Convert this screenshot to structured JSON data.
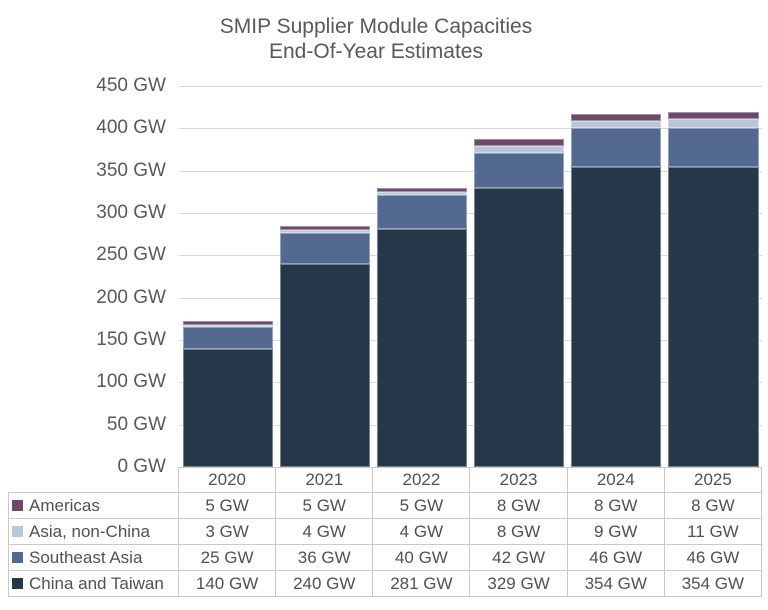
{
  "title": {
    "line1": "SMIP Supplier Module Capacities",
    "line2": "End-Of-Year Estimates"
  },
  "chart_data": {
    "type": "bar",
    "stacked": true,
    "title": "SMIP Supplier Module Capacities End-Of-Year Estimates",
    "categories": [
      "2020",
      "2021",
      "2022",
      "2023",
      "2024",
      "2025"
    ],
    "series": [
      {
        "name": "Americas",
        "color": "#6d4a6b",
        "values": [
          5,
          5,
          5,
          8,
          8,
          8
        ]
      },
      {
        "name": "Asia, non-China",
        "color": "#b9c6da",
        "values": [
          3,
          4,
          4,
          8,
          9,
          11
        ]
      },
      {
        "name": "Southeast Asia",
        "color": "#536990",
        "values": [
          25,
          36,
          40,
          42,
          46,
          46
        ]
      },
      {
        "name": "China and Taiwan",
        "color": "#253749",
        "values": [
          140,
          240,
          281,
          329,
          354,
          354
        ]
      }
    ],
    "unit": "GW",
    "ylim": [
      0,
      450
    ],
    "ytick_step": 50,
    "ytick_labels": [
      "450 GW",
      "400 GW",
      "350 GW",
      "300 GW",
      "250 GW",
      "200 GW",
      "150 GW",
      "100 GW",
      "50 GW",
      "0 GW"
    ],
    "grid": true,
    "legend_position": "table-left",
    "colors": {
      "title_text": "#595959",
      "axis_text": "#595959",
      "table_text": "#515151",
      "gridline": "#d9d9d9",
      "table_border": "#c9c9c9",
      "background": "#ffffff"
    }
  }
}
